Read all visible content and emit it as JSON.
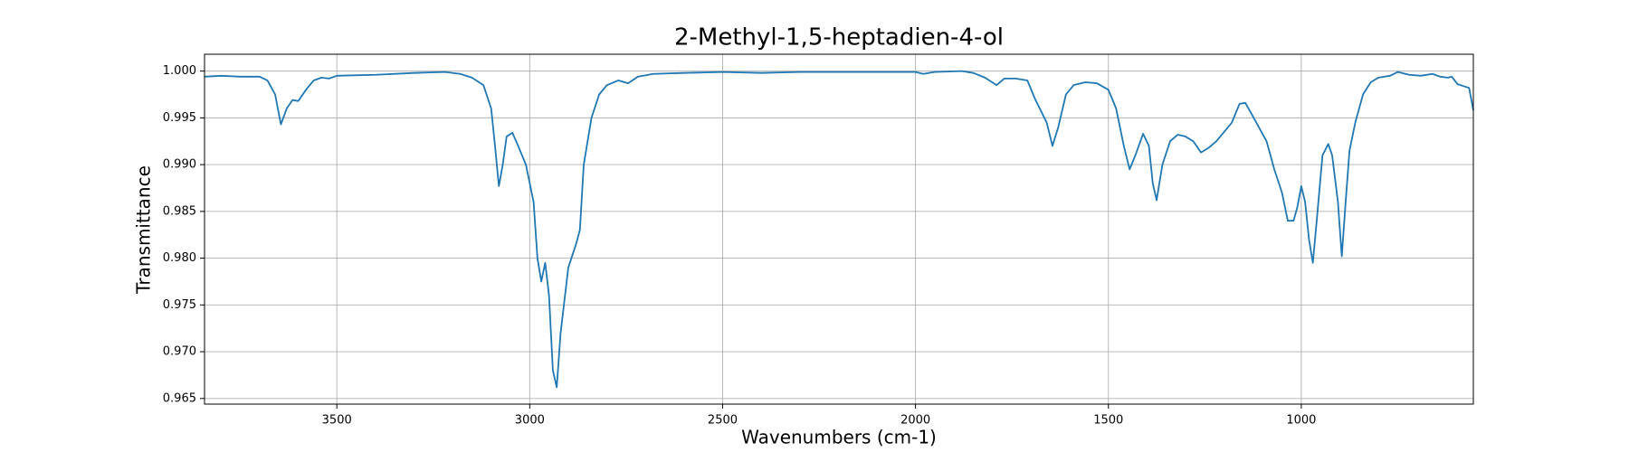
{
  "chart_data": {
    "type": "line",
    "title": "2-Methyl-1,5-heptadien-4-ol",
    "xlabel": "Wavenumbers (cm-1)",
    "ylabel": "Transmittance",
    "color": "#1f77b4",
    "grid": true,
    "xlim": [
      3843,
      554
    ],
    "ylim": [
      0.9644,
      1.0018
    ],
    "xticks": [
      3500,
      3000,
      2500,
      2000,
      1500,
      1000
    ],
    "yticks": [
      {
        "value": 1.0,
        "label": "1.000"
      },
      0.995,
      {
        "value": 0.99,
        "label": "0.990"
      },
      0.985,
      {
        "value": 0.98,
        "label": "0.980"
      },
      0.975,
      {
        "value": 0.97,
        "label": "0.970"
      },
      0.965
    ],
    "x": [
      3843,
      3800,
      3750,
      3700,
      3680,
      3660,
      3645,
      3630,
      3615,
      3600,
      3580,
      3560,
      3540,
      3520,
      3500,
      3400,
      3300,
      3220,
      3180,
      3150,
      3120,
      3100,
      3090,
      3080,
      3070,
      3060,
      3045,
      3030,
      3010,
      2990,
      2980,
      2970,
      2960,
      2950,
      2940,
      2930,
      2920,
      2900,
      2880,
      2870,
      2860,
      2840,
      2820,
      2800,
      2770,
      2745,
      2720,
      2680,
      2600,
      2500,
      2400,
      2300,
      2200,
      2100,
      2000,
      1980,
      1950,
      1880,
      1850,
      1820,
      1790,
      1770,
      1740,
      1710,
      1690,
      1660,
      1645,
      1630,
      1610,
      1590,
      1560,
      1530,
      1500,
      1480,
      1460,
      1445,
      1430,
      1410,
      1395,
      1385,
      1375,
      1360,
      1340,
      1320,
      1300,
      1280,
      1260,
      1240,
      1220,
      1200,
      1180,
      1160,
      1145,
      1130,
      1110,
      1090,
      1070,
      1050,
      1035,
      1020,
      1010,
      1000,
      990,
      980,
      970,
      960,
      945,
      930,
      920,
      905,
      895,
      885,
      875,
      860,
      840,
      820,
      800,
      770,
      750,
      720,
      690,
      660,
      640,
      620,
      610,
      595,
      580,
      565,
      554
    ],
    "values": [
      0.9994,
      0.9995,
      0.9994,
      0.9994,
      0.999,
      0.9975,
      0.9943,
      0.996,
      0.9969,
      0.9968,
      0.998,
      0.999,
      0.9993,
      0.9992,
      0.9995,
      0.9996,
      0.9998,
      0.9999,
      0.9997,
      0.9993,
      0.9985,
      0.996,
      0.992,
      0.9877,
      0.99,
      0.993,
      0.9934,
      0.992,
      0.99,
      0.986,
      0.98,
      0.9775,
      0.9795,
      0.976,
      0.968,
      0.9662,
      0.972,
      0.979,
      0.9815,
      0.983,
      0.99,
      0.995,
      0.9975,
      0.9985,
      0.999,
      0.9987,
      0.9994,
      0.9997,
      0.9998,
      0.9999,
      0.9998,
      0.9999,
      0.9999,
      0.9999,
      0.9999,
      0.9997,
      0.9999,
      1.0,
      0.9998,
      0.9993,
      0.9985,
      0.9992,
      0.9992,
      0.999,
      0.997,
      0.9945,
      0.992,
      0.994,
      0.9975,
      0.9985,
      0.9988,
      0.9987,
      0.998,
      0.996,
      0.992,
      0.9895,
      0.991,
      0.9933,
      0.992,
      0.988,
      0.9862,
      0.99,
      0.9925,
      0.9932,
      0.993,
      0.9925,
      0.9913,
      0.9918,
      0.9925,
      0.9935,
      0.9945,
      0.9965,
      0.9966,
      0.9955,
      0.994,
      0.9925,
      0.9895,
      0.987,
      0.984,
      0.984,
      0.9855,
      0.9877,
      0.986,
      0.982,
      0.9795,
      0.984,
      0.991,
      0.9922,
      0.991,
      0.986,
      0.9802,
      0.986,
      0.9915,
      0.9945,
      0.9975,
      0.9988,
      0.9993,
      0.9995,
      0.9999,
      0.9996,
      0.9995,
      0.9997,
      0.9994,
      0.9993,
      0.9994,
      0.9986,
      0.9984,
      0.9982,
      0.9958
    ]
  }
}
